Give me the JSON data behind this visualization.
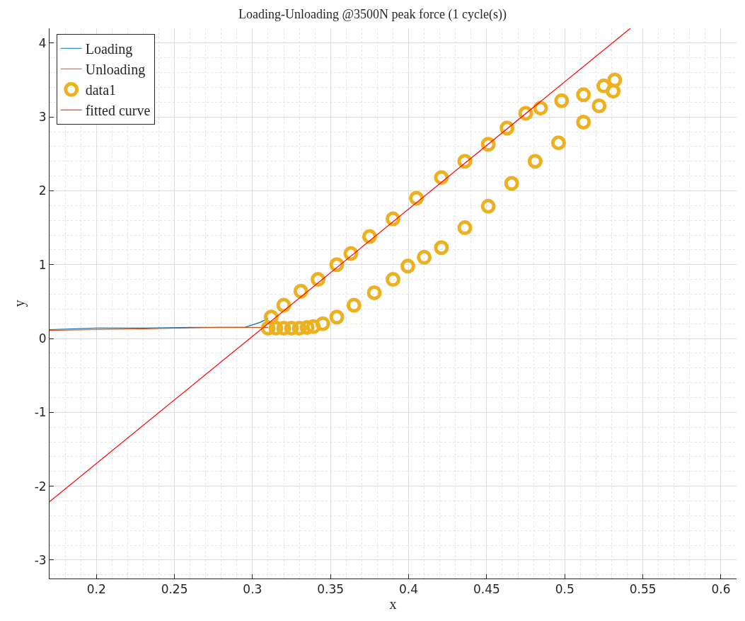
{
  "chart_data": {
    "type": "scatter",
    "title": "Loading-Unloading @3500N peak force (1 cycle(s))",
    "xlabel": "x",
    "ylabel": "y",
    "xlim": [
      0.17,
      0.61
    ],
    "ylim": [
      -3.25,
      4.2
    ],
    "xticks": [
      0.2,
      0.25,
      0.3,
      0.35,
      0.4,
      0.45,
      0.5,
      0.55,
      0.6
    ],
    "yticks": [
      -3,
      -2,
      -1,
      0,
      1,
      2,
      3,
      4
    ],
    "grid": true,
    "legend": "top left",
    "series": [
      {
        "name": "Loading",
        "type": "line",
        "color": "#0072bd",
        "marker": "none",
        "x": [
          0.17,
          0.2,
          0.23,
          0.26,
          0.295,
          0.305,
          0.31
        ],
        "values": [
          0.12,
          0.14,
          0.14,
          0.15,
          0.15,
          0.22,
          0.27
        ]
      },
      {
        "name": "Unloading",
        "type": "line",
        "color": "#d95319",
        "marker": "none",
        "x": [
          0.31,
          0.28,
          0.25,
          0.23,
          0.2,
          0.17
        ],
        "values": [
          0.15,
          0.15,
          0.14,
          0.13,
          0.12,
          0.11
        ]
      },
      {
        "name": "data1",
        "color": "#edb120",
        "marker": "circle",
        "x": [
          0.31,
          0.315,
          0.32,
          0.325,
          0.33,
          0.335,
          0.339,
          0.345,
          0.354,
          0.365,
          0.378,
          0.39,
          0.3995,
          0.41,
          0.421,
          0.436,
          0.451,
          0.466,
          0.481,
          0.496,
          0.512,
          0.522,
          0.531,
          0.532,
          0.525,
          0.512,
          0.498,
          0.4845,
          0.475,
          0.463,
          0.451,
          0.436,
          0.421,
          0.405,
          0.39,
          0.375,
          0.363,
          0.354,
          0.342,
          0.331,
          0.32,
          0.312
        ],
        "values": [
          0.14,
          0.14,
          0.14,
          0.14,
          0.14,
          0.15,
          0.16,
          0.2,
          0.29,
          0.45,
          0.62,
          0.8,
          0.98,
          1.1,
          1.23,
          1.5,
          1.79,
          2.1,
          2.4,
          2.65,
          2.93,
          3.15,
          3.35,
          3.5,
          3.42,
          3.3,
          3.22,
          3.12,
          3.05,
          2.85,
          2.63,
          2.4,
          2.18,
          1.9,
          1.62,
          1.38,
          1.15,
          1.0,
          0.8,
          0.64,
          0.45,
          0.29
        ]
      },
      {
        "name": "fitted curve",
        "type": "line",
        "color": "#ff0000",
        "marker": "none",
        "x": [
          0.17,
          0.542
        ],
        "values": [
          -2.21,
          4.2
        ]
      }
    ]
  }
}
